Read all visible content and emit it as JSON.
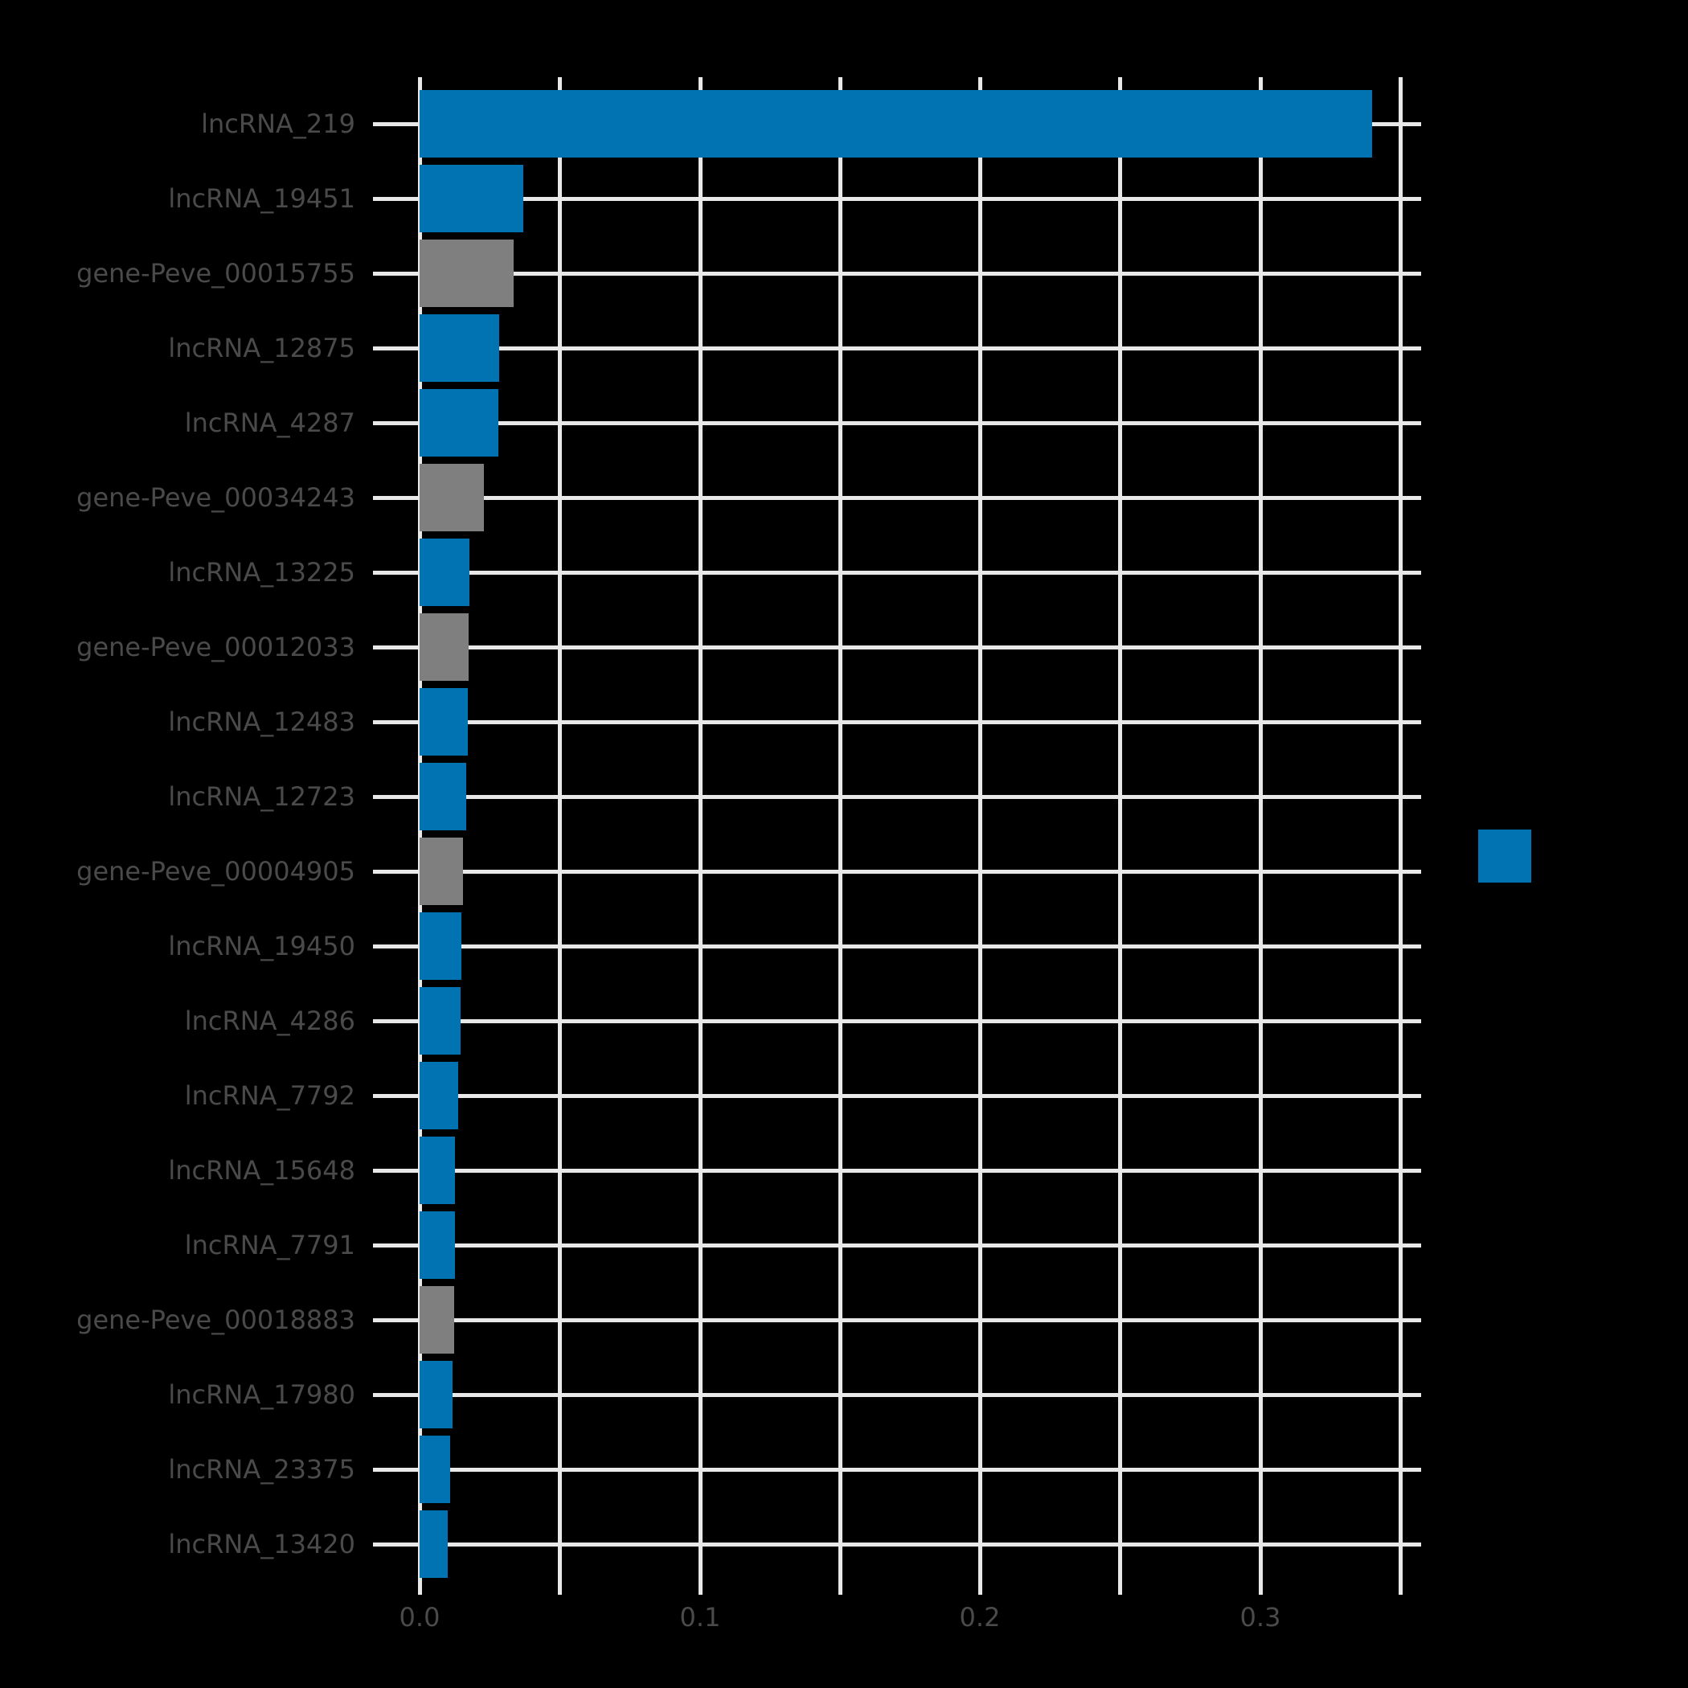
{
  "figure": {
    "background": "#000000",
    "text_color": "#4a4a4a",
    "gridline_color": "#e8e8e8",
    "tick_color": "#d6d6d6"
  },
  "legend": {
    "swatch_color": "#0173b2"
  },
  "chart_data": {
    "type": "bar",
    "orientation": "horizontal",
    "title": "",
    "xlabel": "",
    "ylabel": "",
    "items": [
      {
        "label": "lncRNA_219",
        "value": 0.34,
        "color": "#0173b2"
      },
      {
        "label": "lncRNA_19451",
        "value": 0.037,
        "color": "#0173b2"
      },
      {
        "label": "gene-Peve_00015755",
        "value": 0.0335,
        "color": "#7f7f7f"
      },
      {
        "label": "lncRNA_12875",
        "value": 0.0285,
        "color": "#0173b2"
      },
      {
        "label": "lncRNA_4287",
        "value": 0.028,
        "color": "#0173b2"
      },
      {
        "label": "gene-Peve_00034243",
        "value": 0.023,
        "color": "#7f7f7f"
      },
      {
        "label": "lncRNA_13225",
        "value": 0.0178,
        "color": "#0173b2"
      },
      {
        "label": "gene-Peve_00012033",
        "value": 0.0175,
        "color": "#7f7f7f"
      },
      {
        "label": "lncRNA_12483",
        "value": 0.0172,
        "color": "#0173b2"
      },
      {
        "label": "lncRNA_12723",
        "value": 0.0165,
        "color": "#0173b2"
      },
      {
        "label": "gene-Peve_00004905",
        "value": 0.0154,
        "color": "#7f7f7f"
      },
      {
        "label": "lncRNA_19450",
        "value": 0.0148,
        "color": "#0173b2"
      },
      {
        "label": "lncRNA_4286",
        "value": 0.0147,
        "color": "#0173b2"
      },
      {
        "label": "lncRNA_7792",
        "value": 0.0137,
        "color": "#0173b2"
      },
      {
        "label": "lncRNA_15648",
        "value": 0.0127,
        "color": "#0173b2"
      },
      {
        "label": "lncRNA_7791",
        "value": 0.0126,
        "color": "#0173b2"
      },
      {
        "label": "gene-Peve_00018883",
        "value": 0.0124,
        "color": "#7f7f7f"
      },
      {
        "label": "lncRNA_17980",
        "value": 0.0118,
        "color": "#0173b2"
      },
      {
        "label": "lncRNA_23375",
        "value": 0.0109,
        "color": "#0173b2"
      },
      {
        "label": "lncRNA_13420",
        "value": 0.0101,
        "color": "#0173b2"
      }
    ],
    "series_colors": {
      "lncRNA": "#0173b2",
      "gene-Peve": "#7f7f7f"
    },
    "xlim": [
      0,
      0.35
    ],
    "xticks": [
      0.0,
      0.1,
      0.2,
      0.3
    ],
    "xtick_labels": [
      "0.0",
      "0.1",
      "0.2",
      "0.3"
    ],
    "grid_step": 0.05,
    "grid": true,
    "legend_position": "right-center"
  }
}
